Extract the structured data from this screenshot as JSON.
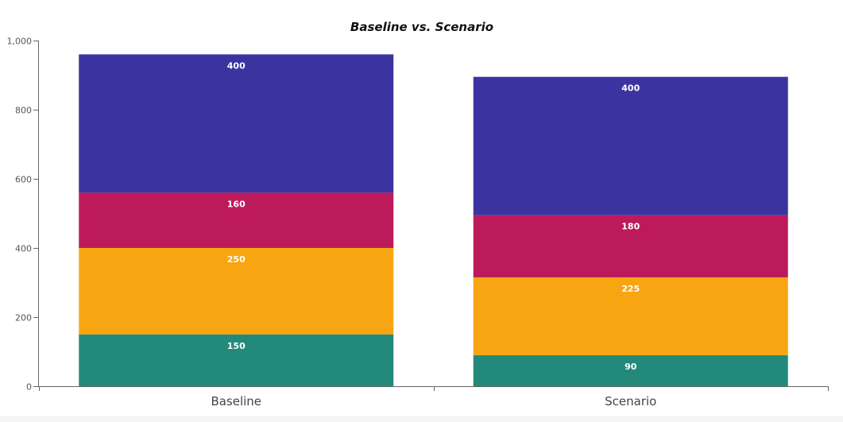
{
  "chart_data": {
    "type": "bar",
    "stacked": true,
    "title": "Baseline vs. Scenario",
    "xlabel": "",
    "ylabel": "",
    "ylim": [
      0,
      1000
    ],
    "yticks": [
      0,
      200,
      400,
      600,
      800,
      1000
    ],
    "ytick_labels": [
      "0",
      "200",
      "400",
      "600",
      "800",
      "1,000"
    ],
    "categories": [
      "Baseline",
      "Scenario"
    ],
    "grid": false,
    "legend": "none",
    "series": [
      {
        "values": [
          150,
          90
        ],
        "color": "#238a7b"
      },
      {
        "values": [
          250,
          225
        ],
        "color": "#f7a511"
      },
      {
        "values": [
          160,
          180
        ],
        "color": "#bd1a5b"
      },
      {
        "values": [
          400,
          400
        ],
        "color": "#3b34a0"
      }
    ]
  }
}
